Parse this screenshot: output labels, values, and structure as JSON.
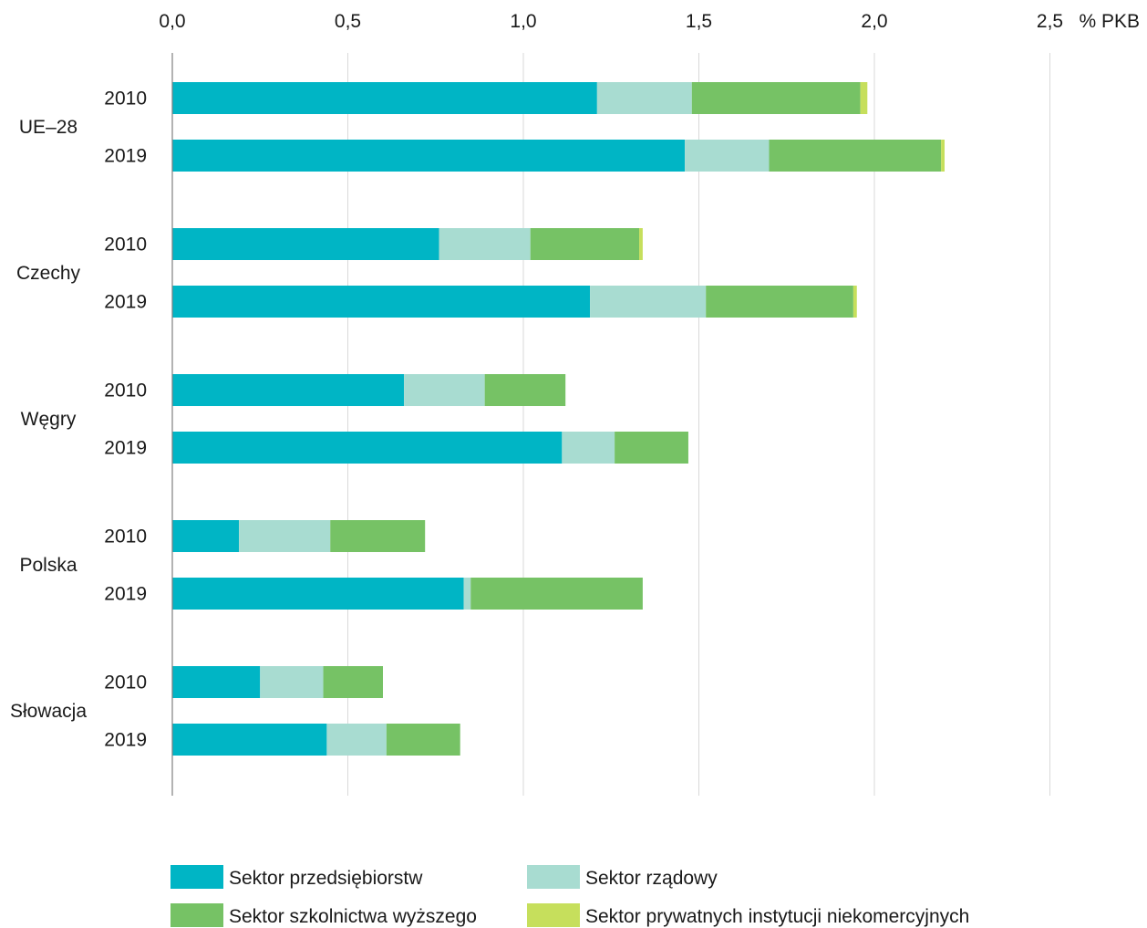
{
  "chart_data": {
    "type": "bar",
    "orientation": "horizontal",
    "stacked": true,
    "unit_label": "% PKB",
    "xlim": [
      0,
      2.5
    ],
    "x_ticks": [
      "0,0",
      "0,5",
      "1,0",
      "1,5",
      "2,0",
      "2,5"
    ],
    "x_tick_values": [
      0,
      0.5,
      1.0,
      1.5,
      2.0,
      2.5
    ],
    "grid": "vertical",
    "legend_position": "bottom",
    "groups": [
      {
        "label": "UE–28",
        "rows": [
          {
            "year": "2010",
            "values": [
              1.21,
              0.27,
              0.48,
              0.02
            ]
          },
          {
            "year": "2019",
            "values": [
              1.46,
              0.24,
              0.49,
              0.01
            ]
          }
        ]
      },
      {
        "label": "Czechy",
        "rows": [
          {
            "year": "2010",
            "values": [
              0.76,
              0.26,
              0.31,
              0.01
            ]
          },
          {
            "year": "2019",
            "values": [
              1.19,
              0.33,
              0.42,
              0.01
            ]
          }
        ]
      },
      {
        "label": "Węgry",
        "rows": [
          {
            "year": "2010",
            "values": [
              0.66,
              0.23,
              0.23,
              0.0
            ]
          },
          {
            "year": "2019",
            "values": [
              1.11,
              0.15,
              0.21,
              0.0
            ]
          }
        ]
      },
      {
        "label": "Polska",
        "rows": [
          {
            "year": "2010",
            "values": [
              0.19,
              0.26,
              0.27,
              0.0
            ]
          },
          {
            "year": "2019",
            "values": [
              0.83,
              0.02,
              0.49,
              0.0
            ]
          }
        ]
      },
      {
        "label": "Słowacja",
        "rows": [
          {
            "year": "2010",
            "values": [
              0.25,
              0.18,
              0.17,
              0.0
            ]
          },
          {
            "year": "2019",
            "values": [
              0.44,
              0.17,
              0.21,
              0.0
            ]
          }
        ]
      }
    ],
    "series": [
      {
        "name": "Sektor przedsiębiorstw",
        "color": "#00b5c5"
      },
      {
        "name": "Sektor rządowy",
        "color": "#a8dcd1"
      },
      {
        "name": "Sektor szkolnictwa wyższego",
        "color": "#76c265"
      },
      {
        "name": "Sektor prywatnych instytucji niekomercyjnych",
        "color": "#c6df5c"
      }
    ],
    "grid_color": "#d9d9d9",
    "axis_color": "#808080"
  }
}
